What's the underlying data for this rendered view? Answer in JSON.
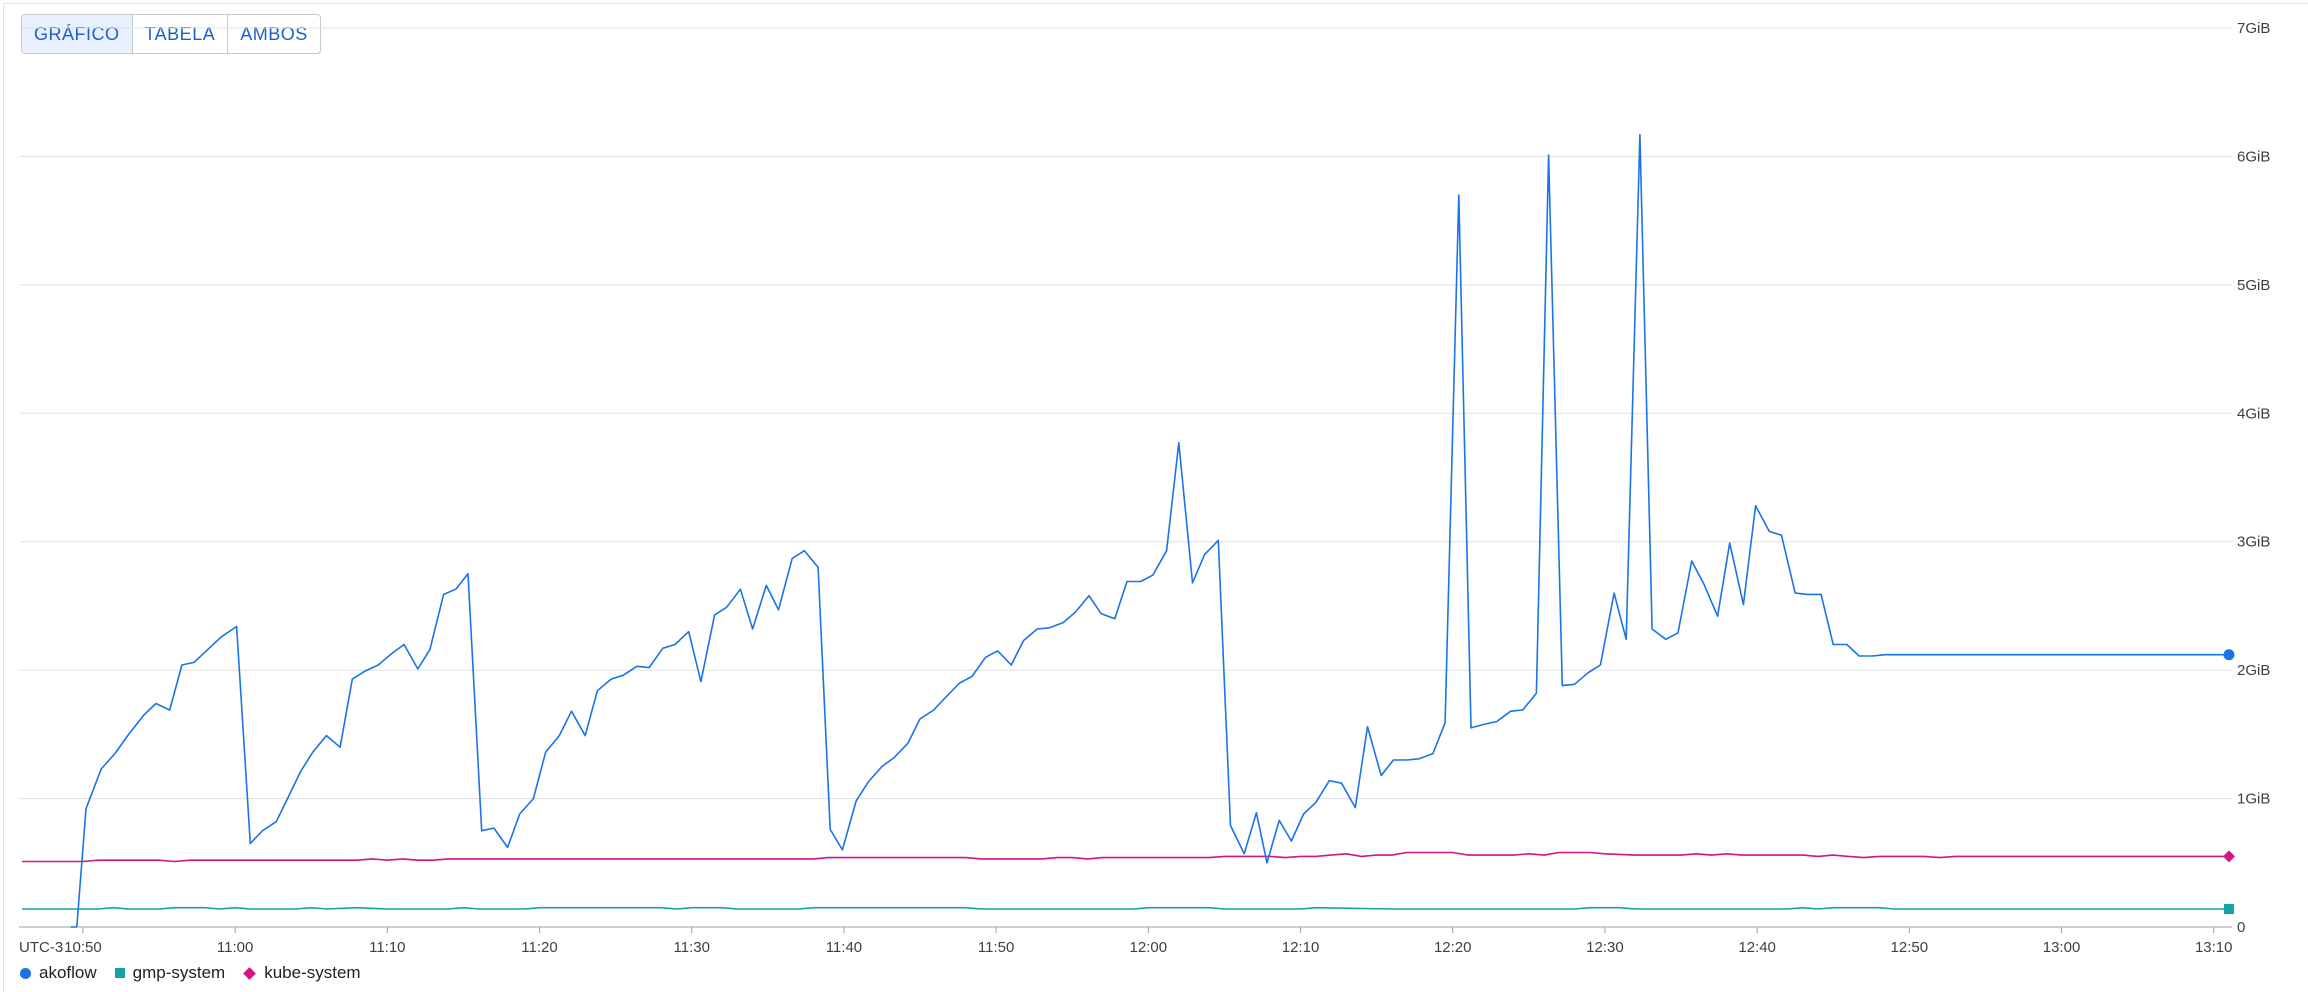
{
  "view_toggle": {
    "buttons": [
      {
        "label": "GRÁFICO",
        "active": true
      },
      {
        "label": "TABELA",
        "active": false
      },
      {
        "label": "AMBOS",
        "active": false
      }
    ]
  },
  "chart_data": {
    "type": "line",
    "title": "",
    "xlabel": "",
    "ylabel": "",
    "timezone_label": "UTC-3",
    "x_unit": "minutes since 10:46",
    "x_ticks": [
      {
        "t": 4,
        "label": "10:50"
      },
      {
        "t": 14,
        "label": "11:00"
      },
      {
        "t": 24,
        "label": "11:10"
      },
      {
        "t": 34,
        "label": "11:20"
      },
      {
        "t": 44,
        "label": "11:30"
      },
      {
        "t": 54,
        "label": "11:40"
      },
      {
        "t": 64,
        "label": "11:50"
      },
      {
        "t": 74,
        "label": "12:00"
      },
      {
        "t": 84,
        "label": "12:10"
      },
      {
        "t": 94,
        "label": "12:20"
      },
      {
        "t": 104,
        "label": "12:30"
      },
      {
        "t": 114,
        "label": "12:40"
      },
      {
        "t": 124,
        "label": "12:50"
      },
      {
        "t": 134,
        "label": "13:00"
      },
      {
        "t": 144,
        "label": "13:10"
      }
    ],
    "xlim": [
      -0.2,
      145.2
    ],
    "y_ticks": [
      {
        "v": 0,
        "label": "0"
      },
      {
        "v": 1,
        "label": "1GiB"
      },
      {
        "v": 2,
        "label": "2GiB"
      },
      {
        "v": 3,
        "label": "3GiB"
      },
      {
        "v": 4,
        "label": "4GiB"
      },
      {
        "v": 5,
        "label": "5GiB"
      },
      {
        "v": 6,
        "label": "6GiB"
      },
      {
        "v": 7,
        "label": "7GiB"
      }
    ],
    "ylim": [
      0,
      7
    ],
    "grid": true,
    "legend_position": "bottom-left",
    "series": [
      {
        "name": "akoflow",
        "color": "#1a73e8",
        "marker": "circle",
        "points": [
          [
            3.2,
            0.0
          ],
          [
            3.6,
            0.0
          ],
          [
            4.2,
            0.92
          ],
          [
            5.2,
            1.23
          ],
          [
            6.1,
            1.35
          ],
          [
            7.0,
            1.5
          ],
          [
            8.0,
            1.65
          ],
          [
            8.8,
            1.74
          ],
          [
            9.7,
            1.69
          ],
          [
            10.5,
            2.04
          ],
          [
            11.3,
            2.06
          ],
          [
            12.2,
            2.16
          ],
          [
            13.1,
            2.26
          ],
          [
            14.1,
            2.34
          ],
          [
            15.0,
            0.65
          ],
          [
            15.8,
            0.75
          ],
          [
            16.7,
            0.82
          ],
          [
            17.4,
            0.99
          ],
          [
            18.3,
            1.21
          ],
          [
            19.1,
            1.36
          ],
          [
            20.0,
            1.49
          ],
          [
            20.9,
            1.4
          ],
          [
            21.7,
            1.93
          ],
          [
            22.5,
            1.99
          ],
          [
            23.4,
            2.04
          ],
          [
            24.3,
            2.13
          ],
          [
            25.1,
            2.2
          ],
          [
            26.0,
            2.01
          ],
          [
            26.8,
            2.16
          ],
          [
            27.7,
            2.59
          ],
          [
            28.5,
            2.63
          ],
          [
            29.3,
            2.75
          ],
          [
            30.2,
            0.75
          ],
          [
            31.0,
            0.77
          ],
          [
            31.9,
            0.62
          ],
          [
            32.7,
            0.88
          ],
          [
            33.6,
            1.0
          ],
          [
            34.4,
            1.36
          ],
          [
            35.3,
            1.49
          ],
          [
            36.1,
            1.68
          ],
          [
            37.0,
            1.49
          ],
          [
            37.8,
            1.84
          ],
          [
            38.7,
            1.93
          ],
          [
            39.5,
            1.96
          ],
          [
            40.4,
            2.03
          ],
          [
            41.2,
            2.02
          ],
          [
            42.1,
            2.17
          ],
          [
            42.9,
            2.2
          ],
          [
            43.8,
            2.3
          ],
          [
            44.6,
            1.91
          ],
          [
            45.5,
            2.43
          ],
          [
            46.3,
            2.49
          ],
          [
            47.2,
            2.63
          ],
          [
            48.0,
            2.32
          ],
          [
            48.9,
            2.66
          ],
          [
            49.7,
            2.47
          ],
          [
            50.6,
            2.87
          ],
          [
            51.4,
            2.93
          ],
          [
            52.3,
            2.8
          ],
          [
            53.1,
            0.76
          ],
          [
            53.9,
            0.6
          ],
          [
            54.8,
            0.98
          ],
          [
            55.6,
            1.13
          ],
          [
            56.5,
            1.25
          ],
          [
            57.3,
            1.32
          ],
          [
            58.2,
            1.43
          ],
          [
            59.0,
            1.62
          ],
          [
            59.9,
            1.69
          ],
          [
            60.7,
            1.79
          ],
          [
            61.6,
            1.9
          ],
          [
            62.4,
            1.95
          ],
          [
            63.3,
            2.1
          ],
          [
            64.1,
            2.15
          ],
          [
            65.0,
            2.04
          ],
          [
            65.8,
            2.23
          ],
          [
            66.7,
            2.32
          ],
          [
            67.5,
            2.33
          ],
          [
            68.4,
            2.37
          ],
          [
            69.2,
            2.45
          ],
          [
            70.1,
            2.58
          ],
          [
            70.9,
            2.44
          ],
          [
            71.8,
            2.4
          ],
          [
            72.6,
            2.69
          ],
          [
            73.5,
            2.69
          ],
          [
            74.3,
            2.74
          ],
          [
            75.2,
            2.93
          ],
          [
            76.0,
            3.77
          ],
          [
            76.9,
            2.68
          ],
          [
            77.7,
            2.9
          ],
          [
            78.6,
            3.01
          ],
          [
            79.4,
            0.79
          ],
          [
            80.3,
            0.57
          ],
          [
            81.1,
            0.89
          ],
          [
            81.8,
            0.5
          ],
          [
            82.6,
            0.83
          ],
          [
            83.4,
            0.67
          ],
          [
            84.2,
            0.88
          ],
          [
            85.0,
            0.97
          ],
          [
            85.9,
            1.14
          ],
          [
            86.7,
            1.12
          ],
          [
            87.6,
            0.93
          ],
          [
            88.4,
            1.56
          ],
          [
            89.3,
            1.18
          ],
          [
            90.1,
            1.3
          ],
          [
            91.0,
            1.3
          ],
          [
            91.8,
            1.31
          ],
          [
            92.7,
            1.35
          ],
          [
            93.5,
            1.59
          ],
          [
            94.4,
            5.7
          ],
          [
            95.2,
            1.55
          ],
          [
            96.1,
            1.58
          ],
          [
            96.9,
            1.6
          ],
          [
            97.8,
            1.68
          ],
          [
            98.6,
            1.69
          ],
          [
            99.5,
            1.82
          ],
          [
            100.3,
            6.01
          ],
          [
            101.2,
            1.88
          ],
          [
            102.0,
            1.89
          ],
          [
            102.9,
            1.98
          ],
          [
            103.7,
            2.04
          ],
          [
            104.6,
            2.6
          ],
          [
            105.4,
            2.24
          ],
          [
            106.3,
            6.17
          ],
          [
            107.1,
            2.32
          ],
          [
            108.0,
            2.24
          ],
          [
            108.8,
            2.29
          ],
          [
            109.7,
            2.85
          ],
          [
            110.5,
            2.67
          ],
          [
            111.4,
            2.42
          ],
          [
            112.2,
            2.99
          ],
          [
            113.1,
            2.51
          ],
          [
            113.9,
            3.28
          ],
          [
            114.8,
            3.08
          ],
          [
            115.6,
            3.05
          ],
          [
            116.5,
            2.6
          ],
          [
            117.3,
            2.59
          ],
          [
            118.2,
            2.59
          ],
          [
            119.0,
            2.2
          ],
          [
            119.9,
            2.2
          ],
          [
            120.7,
            2.11
          ],
          [
            121.6,
            2.11
          ],
          [
            122.4,
            2.12
          ],
          [
            123.3,
            2.12
          ],
          [
            124.1,
            2.12
          ],
          [
            145.0,
            2.12
          ]
        ]
      },
      {
        "name": "gmp-system",
        "color": "#12a4a4",
        "marker": "square",
        "points": [
          [
            0,
            0.14
          ],
          [
            5,
            0.14
          ],
          [
            6,
            0.15
          ],
          [
            7,
            0.14
          ],
          [
            9,
            0.14
          ],
          [
            10,
            0.15
          ],
          [
            12,
            0.15
          ],
          [
            13,
            0.14
          ],
          [
            14,
            0.15
          ],
          [
            15,
            0.14
          ],
          [
            18,
            0.14
          ],
          [
            19,
            0.15
          ],
          [
            20,
            0.14
          ],
          [
            22,
            0.15
          ],
          [
            24,
            0.14
          ],
          [
            28,
            0.14
          ],
          [
            29,
            0.15
          ],
          [
            30,
            0.14
          ],
          [
            33,
            0.14
          ],
          [
            34,
            0.15
          ],
          [
            42,
            0.15
          ],
          [
            43,
            0.14
          ],
          [
            44,
            0.15
          ],
          [
            46,
            0.15
          ],
          [
            47,
            0.14
          ],
          [
            51,
            0.14
          ],
          [
            52,
            0.15
          ],
          [
            60,
            0.15
          ],
          [
            62,
            0.15
          ],
          [
            63,
            0.14
          ],
          [
            73,
            0.14
          ],
          [
            74,
            0.15
          ],
          [
            78,
            0.15
          ],
          [
            79,
            0.14
          ],
          [
            84,
            0.14
          ],
          [
            85,
            0.15
          ],
          [
            90,
            0.14
          ],
          [
            102,
            0.14
          ],
          [
            103,
            0.15
          ],
          [
            105,
            0.15
          ],
          [
            106,
            0.14
          ],
          [
            116,
            0.14
          ],
          [
            117,
            0.15
          ],
          [
            118,
            0.14
          ],
          [
            119,
            0.15
          ],
          [
            122,
            0.15
          ],
          [
            123,
            0.14
          ],
          [
            145,
            0.14
          ]
        ]
      },
      {
        "name": "kube-system",
        "color": "#d01884",
        "marker": "diamond",
        "points": [
          [
            0,
            0.51
          ],
          [
            4,
            0.51
          ],
          [
            5,
            0.52
          ],
          [
            9,
            0.52
          ],
          [
            10,
            0.51
          ],
          [
            11,
            0.52
          ],
          [
            22,
            0.52
          ],
          [
            23,
            0.53
          ],
          [
            24,
            0.52
          ],
          [
            25,
            0.53
          ],
          [
            26,
            0.52
          ],
          [
            27,
            0.52
          ],
          [
            28,
            0.53
          ],
          [
            52,
            0.53
          ],
          [
            53,
            0.54
          ],
          [
            62,
            0.54
          ],
          [
            63,
            0.53
          ],
          [
            67,
            0.53
          ],
          [
            68,
            0.54
          ],
          [
            69,
            0.54
          ],
          [
            70,
            0.53
          ],
          [
            71,
            0.54
          ],
          [
            78,
            0.54
          ],
          [
            79,
            0.55
          ],
          [
            82,
            0.55
          ],
          [
            83,
            0.54
          ],
          [
            84,
            0.55
          ],
          [
            85,
            0.55
          ],
          [
            86,
            0.56
          ],
          [
            87,
            0.57
          ],
          [
            88,
            0.55
          ],
          [
            89,
            0.56
          ],
          [
            90,
            0.56
          ],
          [
            91,
            0.58
          ],
          [
            94,
            0.58
          ],
          [
            95,
            0.56
          ],
          [
            98,
            0.56
          ],
          [
            99,
            0.57
          ],
          [
            100,
            0.56
          ],
          [
            101,
            0.58
          ],
          [
            103,
            0.58
          ],
          [
            104,
            0.57
          ],
          [
            106,
            0.56
          ],
          [
            109,
            0.56
          ],
          [
            110,
            0.57
          ],
          [
            111,
            0.56
          ],
          [
            112,
            0.57
          ],
          [
            113,
            0.56
          ],
          [
            117,
            0.56
          ],
          [
            118,
            0.55
          ],
          [
            119,
            0.56
          ],
          [
            120,
            0.55
          ],
          [
            121,
            0.54
          ],
          [
            122,
            0.55
          ],
          [
            125,
            0.55
          ],
          [
            126,
            0.54
          ],
          [
            127,
            0.55
          ],
          [
            145,
            0.55
          ]
        ]
      }
    ]
  },
  "legend": {
    "items": [
      {
        "label": "akoflow",
        "marker": "circle",
        "color": "#1a73e8"
      },
      {
        "label": "gmp-system",
        "marker": "square",
        "color": "#12a4a4"
      },
      {
        "label": "kube-system",
        "marker": "diamond",
        "color": "#d01884"
      }
    ]
  }
}
